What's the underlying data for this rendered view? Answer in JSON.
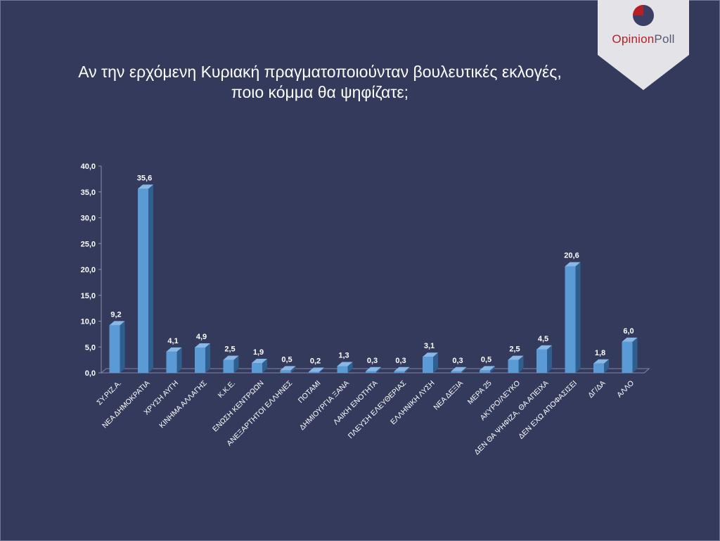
{
  "title": {
    "line1": "Αν την ερχόμενη Κυριακή πραγματοποιούνταν βουλευτικές εκλογές,",
    "line2": "ποιο κόμμα θα ψηφίζατε;"
  },
  "logo": {
    "word1": "Opinion",
    "word2": "Poll",
    "colors": {
      "red": "#b52025",
      "navy": "#3a3f66",
      "gray": "#555a6e"
    }
  },
  "colors": {
    "background": "#333a5c",
    "bar_front": "#5b9bd5",
    "bar_side": "#2f5f8e",
    "bar_top": "#8ab8e6",
    "text": "#ffffff"
  },
  "chart_data": {
    "type": "bar",
    "categories": [
      "ΣΥ.ΡΙΖ.Α.",
      "ΝΕΑ ΔΗΜΟΚΡΑΤΙΑ",
      "ΧΡΥΣΗ ΑΥΓΗ",
      "ΚΙΝΗΜΑ ΑΛΛΑΓΗΣ",
      "Κ.Κ.Ε.",
      "ΕΝΩΣΗ ΚΕΝΤΡΩΩΝ",
      "ΑΝΕΞΑΡΤΗΤΟΙ ΕΛΛΗΝΕΣ",
      "ΠΟΤΑΜΙ",
      "ΔΗΜΙΟΥΡΓΙΑ ΞΑΝΑ",
      "ΛΑΙΚΗ ΕΝΟΤΗΤΑ",
      "ΠΛΕΥΣΗ ΕΛΕΥΘΕΡΙΑΣ",
      "ΕΛΛΗΝΙΚΗ ΛΥΣΗ",
      "ΝΕΑ ΔΕΞΙΑ",
      "ΜΕΡΑ 25",
      "ΑΚΥΡΟ/ΛΕΥΚΟ",
      "ΔΕΝ ΘΑ ΨΗΦΙΖΑ, ΘΑ ΑΠΕΙΧΑ",
      "ΔΕΝ ΕΧΩ ΑΠΟΦΑΣΙΣΕΙ",
      "ΔΓ/ΔΑ",
      "ΑΛΛΟ"
    ],
    "values": [
      9.2,
      35.6,
      4.1,
      4.9,
      2.5,
      1.9,
      0.5,
      0.2,
      1.3,
      0.3,
      0.3,
      3.1,
      0.3,
      0.5,
      2.5,
      4.5,
      20.6,
      1.8,
      6.0
    ],
    "value_labels": [
      "9,2",
      "35,6",
      "4,1",
      "4,9",
      "2,5",
      "1,9",
      "0,5",
      "0,2",
      "1,3",
      "0,3",
      "0,3",
      "3,1",
      "0,3",
      "0,5",
      "2,5",
      "4,5",
      "20,6",
      "1,8",
      "6,0"
    ],
    "y_ticks": [
      0,
      5,
      10,
      15,
      20,
      25,
      30,
      35,
      40
    ],
    "y_tick_labels": [
      "0,0",
      "5,0",
      "10,0",
      "15,0",
      "20,0",
      "25,0",
      "30,0",
      "35,0",
      "40,0"
    ],
    "ylim": [
      0,
      40
    ],
    "grid": false,
    "legend": false,
    "style": "3d-bar"
  }
}
